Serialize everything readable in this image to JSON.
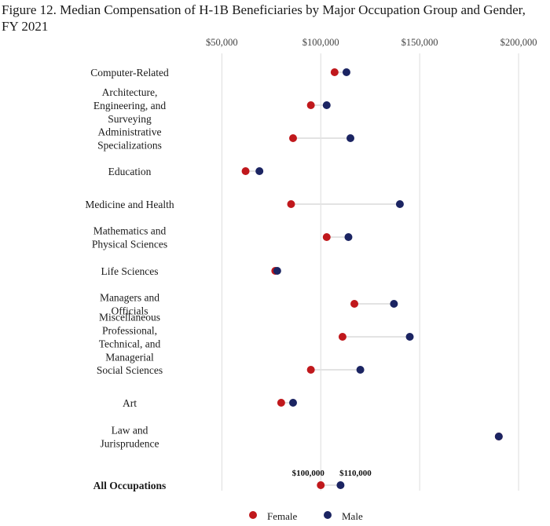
{
  "chart_data": {
    "type": "dot-plot",
    "title": "Figure 12. Median Compensation of H-1B Beneficiaries by Major Occupation Group and Gender, FY 2021",
    "xlim": [
      30000,
      200000
    ],
    "x_ticks": [
      50000,
      100000,
      150000,
      200000
    ],
    "x_tick_labels": [
      "$50,000",
      "$100,000",
      "$150,000",
      "$200,000"
    ],
    "x_axis_position": "top",
    "grid": "vertical",
    "legend_position": "bottom-center",
    "colors": {
      "Female": "#c0181c",
      "Male": "#1b2462"
    },
    "categories": [
      {
        "lines": [
          "Computer-Related"
        ],
        "female": 107000,
        "male": 113000
      },
      {
        "lines": [
          "Architecture,",
          "Engineering, and",
          "Surveying"
        ],
        "female": 95000,
        "male": 103000
      },
      {
        "lines": [
          "Administrative",
          "Specializations"
        ],
        "female": 86000,
        "male": 115000
      },
      {
        "lines": [
          "Education"
        ],
        "female": 62000,
        "male": 69000
      },
      {
        "lines": [
          "Medicine and Health"
        ],
        "female": 85000,
        "male": 140000
      },
      {
        "lines": [
          "Mathematics and",
          "Physical Sciences"
        ],
        "female": 103000,
        "male": 114000
      },
      {
        "lines": [
          "Life Sciences"
        ],
        "female": 77000,
        "male": 78000
      },
      {
        "lines": [
          "Managers and",
          "Officials"
        ],
        "female": 117000,
        "male": 137000
      },
      {
        "lines": [
          "Miscellaneous",
          "Professional,",
          "Technical, and",
          "Managerial"
        ],
        "female": 111000,
        "male": 145000
      },
      {
        "lines": [
          "Social Sciences"
        ],
        "female": 95000,
        "male": 120000
      },
      {
        "lines": [
          "Art"
        ],
        "female": 80000,
        "male": 86000
      },
      {
        "lines": [
          "Law and",
          "Jurisprudence"
        ],
        "female": 190000,
        "male": 190000
      },
      {
        "lines": [
          "All Occupations"
        ],
        "female": 100000,
        "male": 110000,
        "bold": true,
        "female_label": "$100,000",
        "male_label": "$110,000"
      }
    ],
    "series": [
      {
        "name": "Female",
        "key": "female"
      },
      {
        "name": "Male",
        "key": "male"
      }
    ]
  }
}
